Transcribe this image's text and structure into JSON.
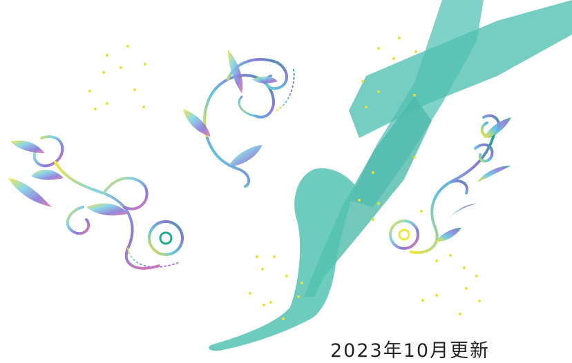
{
  "update_label": "2023年10月更新",
  "icons": {
    "legs": "stocking-legs-illustration",
    "ornament_left": "flourish-ornament",
    "ornament_center": "flourish-ornament",
    "ornament_right": "flourish-ornament",
    "stripes": "gradient-stripes",
    "sparkles": "sparkle-cluster"
  },
  "colors": {
    "stocking": "#35b7a5",
    "stocking_dark": "#1f9e8d",
    "sparkle": "#e6e23a",
    "gradient": [
      "#f2e63a",
      "#7fd3e6",
      "#8a7ad6",
      "#e07ab0"
    ],
    "background": "#ffffff"
  }
}
